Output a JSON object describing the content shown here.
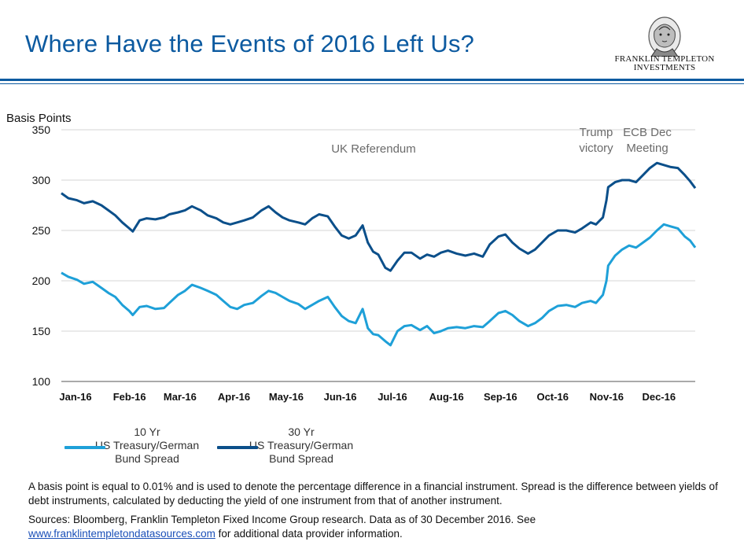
{
  "header": {
    "title": "Where Have the Events of 2016 Left Us?",
    "logo_line1": "FRANKLIN TEMPLETON",
    "logo_line2": "INVESTMENTS"
  },
  "colors": {
    "title": "#0c5aa0",
    "rule": "#0c5aa0",
    "series_10yr": "#1ea0d8",
    "series_30yr": "#0b4f8a",
    "annotation": "#6b6b6b"
  },
  "chart_data": {
    "type": "line",
    "ylabel": "Basis Points",
    "ylim": [
      100,
      350
    ],
    "yticks": [
      100,
      150,
      200,
      250,
      300,
      350
    ],
    "xlim": [
      "2016-01-01",
      "2016-12-30"
    ],
    "xticks": [
      {
        "label": "Jan-16",
        "date": "2016-01-01"
      },
      {
        "label": "Feb-16",
        "date": "2016-02-01"
      },
      {
        "label": "Mar-16",
        "date": "2016-03-01"
      },
      {
        "label": "Apr-16",
        "date": "2016-04-01"
      },
      {
        "label": "May-16",
        "date": "2016-05-01"
      },
      {
        "label": "Jun-16",
        "date": "2016-06-01"
      },
      {
        "label": "Jul-16",
        "date": "2016-07-01"
      },
      {
        "label": "Aug-16",
        "date": "2016-08-01"
      },
      {
        "label": "Sep-16",
        "date": "2016-09-01"
      },
      {
        "label": "Oct-16",
        "date": "2016-10-01"
      },
      {
        "label": "Nov-16",
        "date": "2016-11-01"
      },
      {
        "label": "Dec-16",
        "date": "2016-12-01"
      }
    ],
    "grid": "horizontal",
    "annotations": [
      {
        "text": "UK Referendum",
        "date": "2016-06-23"
      },
      {
        "text": "Trump victory",
        "date": "2016-11-09"
      },
      {
        "text": "ECB Dec Meeting",
        "date": "2016-12-08"
      }
    ],
    "series": [
      {
        "name": "10 Yr US Treasury/German Bund Spread",
        "points": [
          [
            "2016-01-01",
            208
          ],
          [
            "2016-01-05",
            204
          ],
          [
            "2016-01-10",
            201
          ],
          [
            "2016-01-14",
            197
          ],
          [
            "2016-01-19",
            199
          ],
          [
            "2016-01-24",
            193
          ],
          [
            "2016-01-28",
            188
          ],
          [
            "2016-02-01",
            184
          ],
          [
            "2016-02-05",
            176
          ],
          [
            "2016-02-09",
            170
          ],
          [
            "2016-02-11",
            166
          ],
          [
            "2016-02-15",
            174
          ],
          [
            "2016-02-19",
            175
          ],
          [
            "2016-02-24",
            172
          ],
          [
            "2016-02-29",
            173
          ],
          [
            "2016-03-03",
            178
          ],
          [
            "2016-03-08",
            186
          ],
          [
            "2016-03-12",
            190
          ],
          [
            "2016-03-16",
            196
          ],
          [
            "2016-03-21",
            193
          ],
          [
            "2016-03-25",
            190
          ],
          [
            "2016-03-30",
            186
          ],
          [
            "2016-04-03",
            180
          ],
          [
            "2016-04-07",
            174
          ],
          [
            "2016-04-11",
            172
          ],
          [
            "2016-04-15",
            176
          ],
          [
            "2016-04-20",
            178
          ],
          [
            "2016-04-25",
            185
          ],
          [
            "2016-04-29",
            190
          ],
          [
            "2016-05-03",
            188
          ],
          [
            "2016-05-07",
            184
          ],
          [
            "2016-05-11",
            180
          ],
          [
            "2016-05-16",
            177
          ],
          [
            "2016-05-20",
            172
          ],
          [
            "2016-05-24",
            176
          ],
          [
            "2016-05-28",
            180
          ],
          [
            "2016-06-02",
            184
          ],
          [
            "2016-06-06",
            174
          ],
          [
            "2016-06-10",
            165
          ],
          [
            "2016-06-14",
            160
          ],
          [
            "2016-06-18",
            158
          ],
          [
            "2016-06-22",
            172
          ],
          [
            "2016-06-25",
            153
          ],
          [
            "2016-06-28",
            147
          ],
          [
            "2016-07-01",
            146
          ],
          [
            "2016-07-05",
            140
          ],
          [
            "2016-07-08",
            136
          ],
          [
            "2016-07-12",
            150
          ],
          [
            "2016-07-16",
            155
          ],
          [
            "2016-07-20",
            156
          ],
          [
            "2016-07-25",
            151
          ],
          [
            "2016-07-29",
            155
          ],
          [
            "2016-08-02",
            148
          ],
          [
            "2016-08-06",
            150
          ],
          [
            "2016-08-10",
            153
          ],
          [
            "2016-08-15",
            154
          ],
          [
            "2016-08-20",
            153
          ],
          [
            "2016-08-25",
            155
          ],
          [
            "2016-08-30",
            154
          ],
          [
            "2016-09-03",
            160
          ],
          [
            "2016-09-08",
            168
          ],
          [
            "2016-09-12",
            170
          ],
          [
            "2016-09-16",
            166
          ],
          [
            "2016-09-20",
            160
          ],
          [
            "2016-09-25",
            155
          ],
          [
            "2016-09-29",
            158
          ],
          [
            "2016-10-03",
            163
          ],
          [
            "2016-10-07",
            170
          ],
          [
            "2016-10-12",
            175
          ],
          [
            "2016-10-17",
            176
          ],
          [
            "2016-10-22",
            174
          ],
          [
            "2016-10-26",
            178
          ],
          [
            "2016-10-31",
            180
          ],
          [
            "2016-11-03",
            178
          ],
          [
            "2016-11-07",
            186
          ],
          [
            "2016-11-09",
            200
          ],
          [
            "2016-11-10",
            215
          ],
          [
            "2016-11-14",
            225
          ],
          [
            "2016-11-18",
            231
          ],
          [
            "2016-11-22",
            235
          ],
          [
            "2016-11-26",
            233
          ],
          [
            "2016-11-30",
            238
          ],
          [
            "2016-12-04",
            243
          ],
          [
            "2016-12-08",
            250
          ],
          [
            "2016-12-12",
            256
          ],
          [
            "2016-12-16",
            254
          ],
          [
            "2016-12-20",
            252
          ],
          [
            "2016-12-24",
            244
          ],
          [
            "2016-12-27",
            240
          ],
          [
            "2016-12-30",
            233
          ]
        ]
      },
      {
        "name": "30 Yr US Treasury/German Bund Spread",
        "points": [
          [
            "2016-01-01",
            287
          ],
          [
            "2016-01-05",
            282
          ],
          [
            "2016-01-10",
            280
          ],
          [
            "2016-01-14",
            277
          ],
          [
            "2016-01-19",
            279
          ],
          [
            "2016-01-24",
            275
          ],
          [
            "2016-01-28",
            270
          ],
          [
            "2016-02-01",
            265
          ],
          [
            "2016-02-05",
            258
          ],
          [
            "2016-02-09",
            252
          ],
          [
            "2016-02-11",
            249
          ],
          [
            "2016-02-15",
            260
          ],
          [
            "2016-02-19",
            262
          ],
          [
            "2016-02-24",
            261
          ],
          [
            "2016-02-29",
            263
          ],
          [
            "2016-03-03",
            266
          ],
          [
            "2016-03-08",
            268
          ],
          [
            "2016-03-12",
            270
          ],
          [
            "2016-03-16",
            274
          ],
          [
            "2016-03-21",
            270
          ],
          [
            "2016-03-25",
            265
          ],
          [
            "2016-03-30",
            262
          ],
          [
            "2016-04-03",
            258
          ],
          [
            "2016-04-07",
            256
          ],
          [
            "2016-04-11",
            258
          ],
          [
            "2016-04-15",
            260
          ],
          [
            "2016-04-20",
            263
          ],
          [
            "2016-04-25",
            270
          ],
          [
            "2016-04-29",
            274
          ],
          [
            "2016-05-03",
            268
          ],
          [
            "2016-05-07",
            263
          ],
          [
            "2016-05-11",
            260
          ],
          [
            "2016-05-16",
            258
          ],
          [
            "2016-05-20",
            256
          ],
          [
            "2016-05-24",
            262
          ],
          [
            "2016-05-28",
            266
          ],
          [
            "2016-06-02",
            264
          ],
          [
            "2016-06-06",
            254
          ],
          [
            "2016-06-10",
            245
          ],
          [
            "2016-06-14",
            242
          ],
          [
            "2016-06-18",
            245
          ],
          [
            "2016-06-22",
            255
          ],
          [
            "2016-06-25",
            238
          ],
          [
            "2016-06-28",
            229
          ],
          [
            "2016-07-01",
            226
          ],
          [
            "2016-07-05",
            213
          ],
          [
            "2016-07-08",
            210
          ],
          [
            "2016-07-12",
            220
          ],
          [
            "2016-07-16",
            228
          ],
          [
            "2016-07-20",
            228
          ],
          [
            "2016-07-25",
            222
          ],
          [
            "2016-07-29",
            226
          ],
          [
            "2016-08-02",
            224
          ],
          [
            "2016-08-06",
            228
          ],
          [
            "2016-08-10",
            230
          ],
          [
            "2016-08-15",
            227
          ],
          [
            "2016-08-20",
            225
          ],
          [
            "2016-08-25",
            227
          ],
          [
            "2016-08-30",
            224
          ],
          [
            "2016-09-03",
            236
          ],
          [
            "2016-09-08",
            244
          ],
          [
            "2016-09-12",
            246
          ],
          [
            "2016-09-16",
            238
          ],
          [
            "2016-09-20",
            232
          ],
          [
            "2016-09-25",
            227
          ],
          [
            "2016-09-29",
            231
          ],
          [
            "2016-10-03",
            238
          ],
          [
            "2016-10-07",
            245
          ],
          [
            "2016-10-12",
            250
          ],
          [
            "2016-10-17",
            250
          ],
          [
            "2016-10-22",
            248
          ],
          [
            "2016-10-26",
            252
          ],
          [
            "2016-10-31",
            258
          ],
          [
            "2016-11-03",
            256
          ],
          [
            "2016-11-07",
            263
          ],
          [
            "2016-11-09",
            280
          ],
          [
            "2016-11-10",
            293
          ],
          [
            "2016-11-14",
            298
          ],
          [
            "2016-11-18",
            300
          ],
          [
            "2016-11-22",
            300
          ],
          [
            "2016-11-26",
            298
          ],
          [
            "2016-11-30",
            305
          ],
          [
            "2016-12-04",
            312
          ],
          [
            "2016-12-08",
            317
          ],
          [
            "2016-12-12",
            315
          ],
          [
            "2016-12-16",
            313
          ],
          [
            "2016-12-20",
            312
          ],
          [
            "2016-12-24",
            305
          ],
          [
            "2016-12-27",
            299
          ],
          [
            "2016-12-30",
            292
          ]
        ]
      }
    ]
  },
  "legend": {
    "items": [
      {
        "line1": "10 Yr",
        "line2": "US Treasury/German",
        "line3": "Bund Spread"
      },
      {
        "line1": "30 Yr",
        "line2": "US Treasury/German",
        "line3": "Bund Spread"
      }
    ]
  },
  "footnotes": {
    "definition": "A basis point is equal to 0.01% and is used to denote the percentage difference in a financial instrument.  Spread is the difference between yields of  debt instruments, calculated by deducting the yield of one instrument from that of another instrument.",
    "sources_prefix": "Sources: Bloomberg, Franklin Templeton Fixed Income Group research. Data as of 30 December 2016. See ",
    "sources_link": "www.franklintempletondatasources.com",
    "sources_suffix": " for additional data provider information."
  }
}
